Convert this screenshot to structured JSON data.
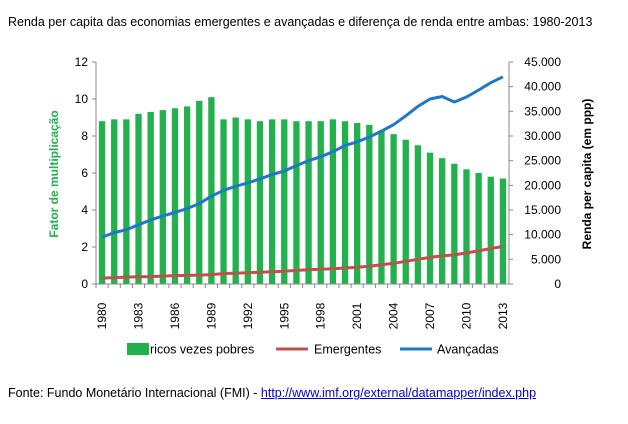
{
  "title": "Renda per capita das economias emergentes e avançadas e diferença de renda entre ambas: 1980-2013",
  "source": {
    "prefix": "Fonte: Fundo Monetário Internacional (FMI) - ",
    "link_text": "http://www.imf.org/external/datamapper/index.php"
  },
  "colors": {
    "bars": "#22b14c",
    "emergentes": "#c0504d",
    "avancadas": "#1f77c8",
    "left_axis_title": "#22b14c"
  },
  "chart_data": {
    "type": "bar+line",
    "years": [
      1980,
      1981,
      1982,
      1983,
      1984,
      1985,
      1986,
      1987,
      1988,
      1989,
      1990,
      1991,
      1992,
      1993,
      1994,
      1995,
      1996,
      1997,
      1998,
      1999,
      2000,
      2001,
      2002,
      2003,
      2004,
      2005,
      2006,
      2007,
      2008,
      2009,
      2010,
      2011,
      2012,
      2013
    ],
    "x_tick_labels": [
      "1980",
      "1983",
      "1986",
      "1989",
      "1992",
      "1995",
      "1998",
      "2001",
      "2004",
      "2007",
      "2010",
      "2013"
    ],
    "y_left": {
      "label": "Fator de multiplicação",
      "ylim": [
        0,
        12
      ],
      "ticks": [
        "0",
        "2",
        "4",
        "6",
        "8",
        "10",
        "12"
      ]
    },
    "y_right": {
      "label": "Renda per capita (em ppp)",
      "ylim": [
        0,
        45000
      ],
      "ticks": [
        "0",
        "5.000",
        "10.000",
        "15.000",
        "20.000",
        "25.000",
        "30.000",
        "35.000",
        "40.000",
        "45.000"
      ]
    },
    "series": [
      {
        "name": "ricos vezes pobres",
        "kind": "bar",
        "axis": "left",
        "values": [
          8.8,
          8.9,
          8.9,
          9.2,
          9.3,
          9.4,
          9.5,
          9.6,
          9.9,
          10.1,
          8.9,
          9.0,
          8.9,
          8.8,
          8.9,
          8.9,
          8.8,
          8.8,
          8.8,
          8.9,
          8.8,
          8.7,
          8.6,
          8.3,
          8.1,
          7.8,
          7.5,
          7.1,
          6.8,
          6.5,
          6.2,
          6.0,
          5.8,
          5.7
        ]
      },
      {
        "name": "Emergentes",
        "kind": "line",
        "axis": "right",
        "values": [
          1200,
          1300,
          1400,
          1450,
          1500,
          1600,
          1700,
          1750,
          1800,
          1900,
          2100,
          2200,
          2300,
          2400,
          2500,
          2600,
          2750,
          2900,
          3000,
          3100,
          3250,
          3400,
          3600,
          3900,
          4200,
          4600,
          5000,
          5400,
          5700,
          5900,
          6300,
          6700,
          7200,
          7600
        ]
      },
      {
        "name": "Avançadas",
        "kind": "line",
        "axis": "right",
        "values": [
          9500,
          10400,
          11000,
          12000,
          13000,
          13800,
          14500,
          15300,
          16300,
          17800,
          19000,
          19800,
          20500,
          21300,
          22200,
          22900,
          24000,
          25000,
          25800,
          26800,
          28100,
          28800,
          29800,
          31000,
          32300,
          34100,
          36000,
          37500,
          38000,
          36900,
          37900,
          39300,
          40800,
          42000
        ]
      }
    ],
    "legend_position": "bottom",
    "grid": false
  }
}
